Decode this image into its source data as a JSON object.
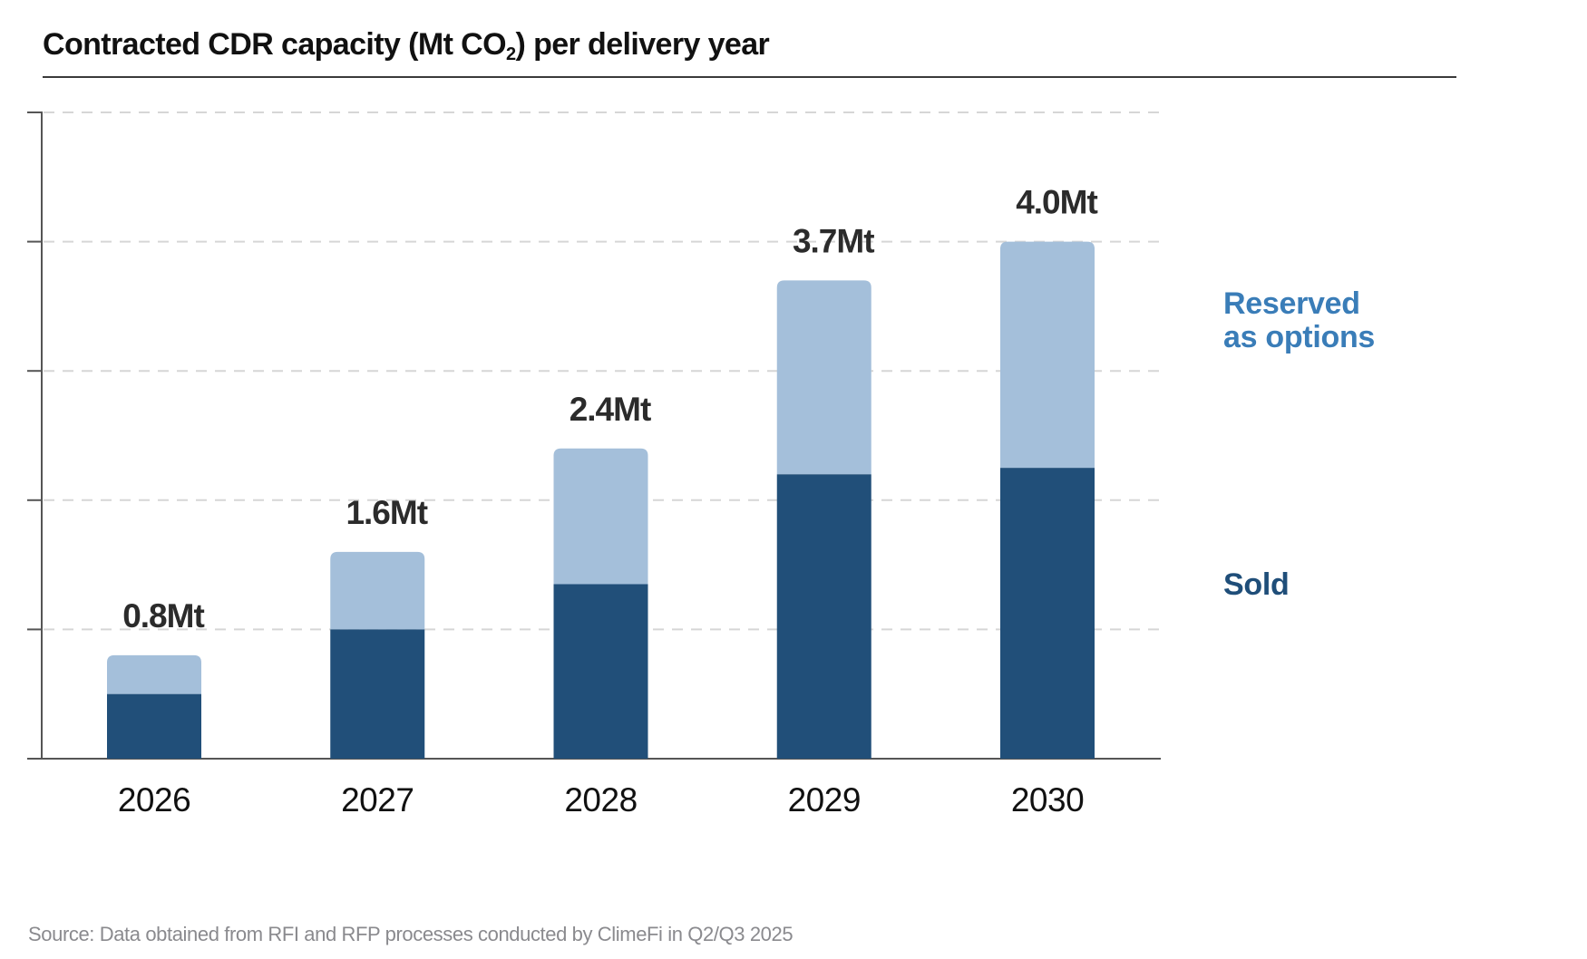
{
  "title": {
    "prefix": "Contracted CDR capacity (Mt CO",
    "subscript": "2",
    "suffix": ") per delivery year"
  },
  "footer": {
    "source": "Source: Data obtained from RFI and RFP processes conducted by ClimeFi in Q2/Q3 2025"
  },
  "legend": {
    "reserved_line1": "Reserved",
    "reserved_line2": "as options",
    "sold": "Sold"
  },
  "colors": {
    "sold": "#214f79",
    "reserved": "#a4bfda",
    "sold_text": "#1f4e79",
    "reserved_text": "#3a7db8",
    "label_text": "#2b2b2b",
    "grid": "#d6d6d6",
    "axis": "#555555"
  },
  "chart_data": {
    "type": "bar",
    "stacked": true,
    "title": "Contracted CDR capacity (Mt CO2) per delivery year",
    "xlabel": "",
    "ylabel": "",
    "categories": [
      "2026",
      "2027",
      "2028",
      "2029",
      "2030"
    ],
    "series": [
      {
        "name": "Sold",
        "values": [
          0.5,
          1.0,
          1.35,
          2.2,
          2.25
        ]
      },
      {
        "name": "Reserved as options",
        "values": [
          0.3,
          0.6,
          1.05,
          1.5,
          1.75
        ]
      }
    ],
    "totals": [
      0.8,
      1.6,
      2.4,
      3.7,
      4.0
    ],
    "data_labels": [
      "0.8Mt",
      "1.6Mt",
      "2.4Mt",
      "3.7Mt",
      "4.0Mt"
    ],
    "ylim": [
      0,
      5
    ],
    "yticks": [
      0,
      1,
      2,
      3,
      4,
      5
    ],
    "ytick_labels_shown": false,
    "grid": true,
    "grid_style": "dashed",
    "legend_position": "right"
  }
}
